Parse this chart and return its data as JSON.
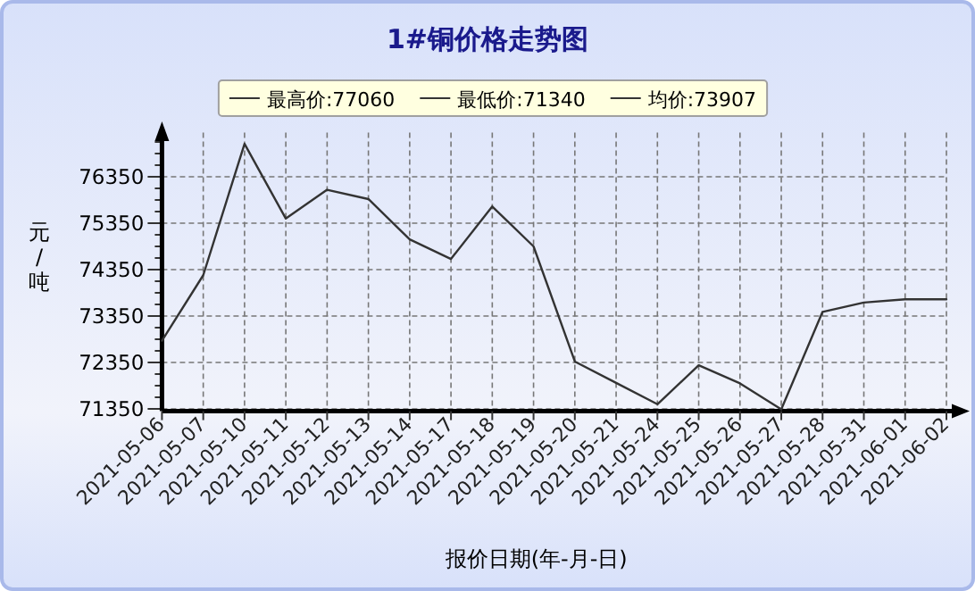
{
  "chart_data": {
    "type": "line",
    "title": "1#铜价格走势图",
    "ylabel": "元/吨",
    "xlabel": "报价日期(年-月-日)",
    "categories": [
      "2021-05-06",
      "2021-05-07",
      "2021-05-10",
      "2021-05-11",
      "2021-05-12",
      "2021-05-13",
      "2021-05-14",
      "2021-05-17",
      "2021-05-18",
      "2021-05-19",
      "2021-05-20",
      "2021-05-21",
      "2021-05-24",
      "2021-05-25",
      "2021-05-26",
      "2021-05-27",
      "2021-05-28",
      "2021-05-31",
      "2021-06-01",
      "2021-06-02"
    ],
    "series": [
      {
        "color": "#333333",
        "values": [
          72820,
          74230,
          77060,
          75450,
          76070,
          75870,
          75000,
          74580,
          75710,
          74850,
          72370,
          71910,
          71450,
          72290,
          71900,
          71340,
          73440,
          73640,
          73710,
          73710
        ]
      }
    ],
    "annotations": [
      "最高价:77060",
      "最低价:71340",
      "均价:73907"
    ],
    "ylim": [
      71300,
      77300
    ],
    "yticks": [
      71350,
      {
        "value": 71600,
        "label": null
      },
      {
        "value": 71850,
        "label": null
      },
      {
        "value": 72100,
        "label": null
      },
      72350,
      {
        "value": 72600,
        "label": null
      },
      {
        "value": 72850,
        "label": null
      },
      {
        "value": 73100,
        "label": null
      },
      73350,
      {
        "value": 73600,
        "label": null
      },
      {
        "value": 73850,
        "label": null
      },
      {
        "value": 74100,
        "label": null
      },
      74350,
      {
        "value": 74600,
        "label": null
      },
      {
        "value": 74850,
        "label": null
      },
      {
        "value": 75100,
        "label": null
      },
      75350,
      {
        "value": 75600,
        "label": null
      },
      {
        "value": 75850,
        "label": null
      },
      {
        "value": 76100,
        "label": null
      },
      76350,
      {
        "value": 76600,
        "label": null
      },
      {
        "value": 76850,
        "label": null
      },
      {
        "value": 77100,
        "label": null
      }
    ],
    "grid": true,
    "marker": "none",
    "line_style": "solid"
  }
}
